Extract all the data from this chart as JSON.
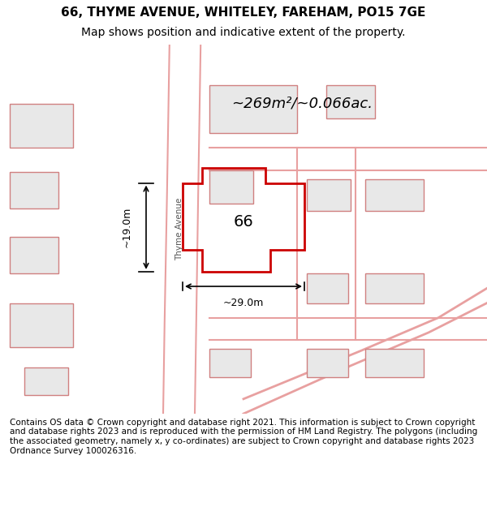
{
  "title_line1": "66, THYME AVENUE, WHITELEY, FAREHAM, PO15 7GE",
  "title_line2": "Map shows position and indicative extent of the property.",
  "footer_text": "Contains OS data © Crown copyright and database right 2021. This information is subject to Crown copyright and database rights 2023 and is reproduced with the permission of HM Land Registry. The polygons (including the associated geometry, namely x, y co-ordinates) are subject to Crown copyright and database rights 2023 Ordnance Survey 100026316.",
  "area_text": "~269m²/~0.066ac.",
  "label_66": "66",
  "dim_19m": "~19.0m",
  "dim_29m": "~29.0m",
  "background_color": "#f0f0e8",
  "map_bg_color": "#f5f5f0",
  "road_color": "#ffffff",
  "building_color": "#e8e8e8",
  "highlight_polygon_color": "#cc0000",
  "highlight_polygon_fill": "none",
  "road_line_color": "#e8a0a0",
  "street_label": "Thyme Avenue",
  "title_fontsize": 11,
  "subtitle_fontsize": 10,
  "footer_fontsize": 7.5
}
